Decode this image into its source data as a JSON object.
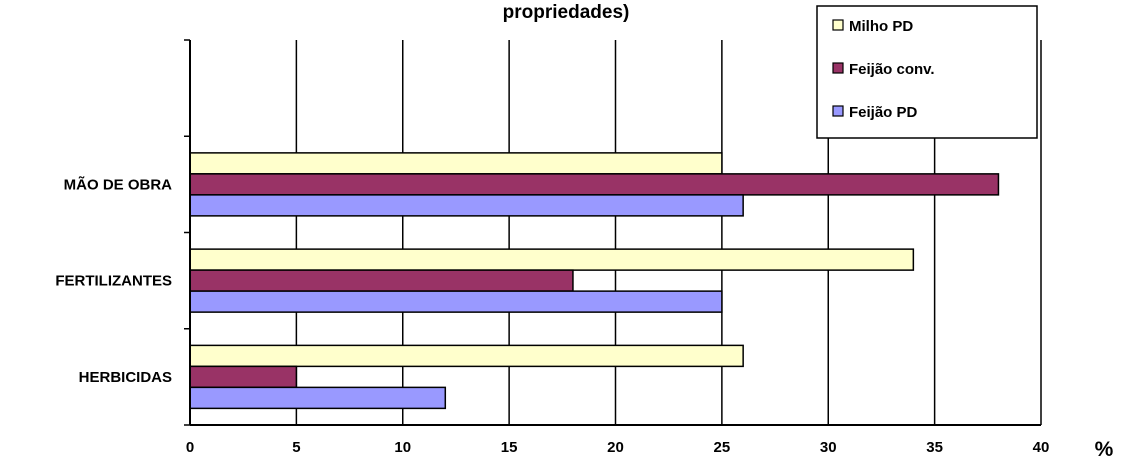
{
  "chart_data": {
    "type": "bar",
    "orientation": "horizontal",
    "title": "propriedades)",
    "xlabel": "%",
    "ylabel": "",
    "xlim": [
      0,
      40
    ],
    "x_ticks": [
      0,
      5,
      10,
      15,
      20,
      25,
      30,
      35,
      40
    ],
    "grid": "vertical",
    "legend_position": "top-right",
    "categories": [
      "MÃO DE OBRA",
      "FERTILIZANTES",
      "HERBICIDAS"
    ],
    "series": [
      {
        "name": "Milho PD",
        "color": "#ffffcc",
        "values": [
          25,
          34,
          26
        ]
      },
      {
        "name": "Feijão conv.",
        "color": "#993366",
        "values": [
          38,
          18,
          5
        ]
      },
      {
        "name": "Feijão PD",
        "color": "#9999ff",
        "values": [
          26,
          25,
          12
        ]
      }
    ]
  }
}
